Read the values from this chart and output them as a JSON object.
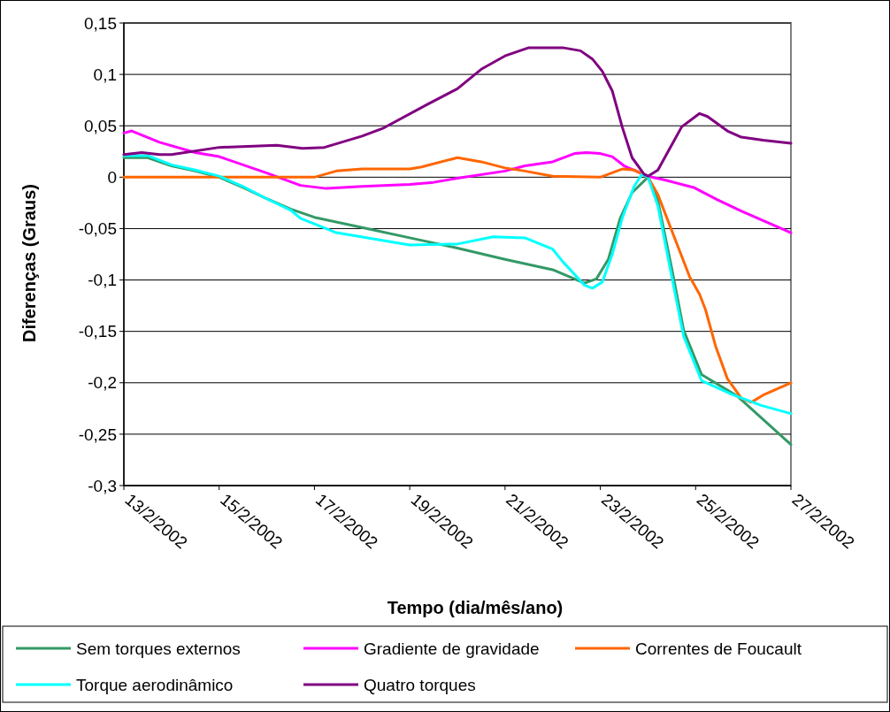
{
  "chart_data": {
    "type": "line",
    "xlabel": "Tempo (dia/mês/ano)",
    "ylabel": "Diferenças (Graus)",
    "xlim": [
      "2002-02-13",
      "2002-02-27"
    ],
    "xticks": [
      {
        "value": "2002-02-13",
        "label": "13/2/2002"
      },
      {
        "value": "2002-02-15",
        "label": "15/2/2002"
      },
      {
        "value": "2002-02-17",
        "label": "17/2/2002"
      },
      {
        "value": "2002-02-19",
        "label": "19/2/2002"
      },
      {
        "value": "2002-02-21",
        "label": "21/2/2002"
      },
      {
        "value": "2002-02-23",
        "label": "23/2/2002"
      },
      {
        "value": "2002-02-25",
        "label": "25/2/2002"
      },
      {
        "value": "2002-02-27",
        "label": "27/2/2002"
      }
    ],
    "ylim": [
      -0.3,
      0.15
    ],
    "yticks": [
      {
        "value": -0.3,
        "label": "-0,3"
      },
      {
        "value": -0.25,
        "label": "-0,25"
      },
      {
        "value": -0.2,
        "label": "-0,2"
      },
      {
        "value": -0.15,
        "label": "-0,15"
      },
      {
        "value": -0.1,
        "label": "-0,1"
      },
      {
        "value": -0.05,
        "label": "-0,05"
      },
      {
        "value": 0,
        "label": "0"
      },
      {
        "value": 0.05,
        "label": "0,05"
      },
      {
        "value": 0.1,
        "label": "0,1"
      },
      {
        "value": 0.15,
        "label": "0,15"
      }
    ],
    "grid": "y",
    "legend": "bottom",
    "marker": "none",
    "line_style": "solid",
    "series": [
      {
        "name": "Sem torques externos",
        "color": "#339966",
        "x": [
          "2002-02-13",
          "2002-02-13T12:00",
          "2002-02-14",
          "2002-02-14T12:00",
          "2002-02-15",
          "2002-02-15T12:00",
          "2002-02-16",
          "2002-02-16T12:00",
          "2002-02-17",
          "2002-02-18",
          "2002-02-19",
          "2002-02-20",
          "2002-02-21",
          "2002-02-22",
          "2002-02-22T16:00",
          "2002-02-22T22:00",
          "2002-02-23T04:00",
          "2002-02-23T10:00",
          "2002-02-23T16:00",
          "2002-02-24",
          "2002-02-24T05:00",
          "2002-02-24T12:00",
          "2002-02-24T18:00",
          "2002-02-25T03:00",
          "2002-02-25T21:00",
          "2002-02-27"
        ],
        "values": [
          0.019,
          0.019,
          0.011,
          0.006,
          0.0,
          -0.01,
          -0.021,
          -0.031,
          -0.039,
          -0.049,
          -0.059,
          -0.069,
          -0.08,
          -0.09,
          -0.103,
          -0.099,
          -0.08,
          -0.04,
          -0.015,
          0.0,
          -0.023,
          -0.089,
          -0.149,
          -0.192,
          -0.213,
          -0.26
        ]
      },
      {
        "name": "Gradiente de gravidade",
        "color": "#ff00ff",
        "x": [
          "2002-02-13",
          "2002-02-13T04:00",
          "2002-02-13T18:00",
          "2002-02-14T12:00",
          "2002-02-15",
          "2002-02-16",
          "2002-02-16T17:00",
          "2002-02-17T06:00",
          "2002-02-18",
          "2002-02-19",
          "2002-02-19T12:00",
          "2002-02-20",
          "2002-02-21",
          "2002-02-21T10:00",
          "2002-02-22",
          "2002-02-22T11:00",
          "2002-02-22T17:00",
          "2002-02-23",
          "2002-02-23T06:00",
          "2002-02-23T12:00",
          "2002-02-24",
          "2002-02-24T09:00",
          "2002-02-24T23:00",
          "2002-02-25T11:00",
          "2002-02-25T23:00",
          "2002-02-27"
        ],
        "values": [
          0.043,
          0.045,
          0.034,
          0.024,
          0.02,
          0.004,
          -0.008,
          -0.011,
          -0.009,
          -0.007,
          -0.005,
          -0.001,
          0.006,
          0.011,
          0.015,
          0.023,
          0.024,
          0.023,
          0.02,
          0.011,
          0.001,
          -0.003,
          -0.01,
          -0.022,
          -0.033,
          -0.054
        ]
      },
      {
        "name": "Correntes de Foucault",
        "color": "#ff6600",
        "x": [
          "2002-02-13",
          "2002-02-17",
          "2002-02-17T11:00",
          "2002-02-18",
          "2002-02-19",
          "2002-02-19T06:00",
          "2002-02-20",
          "2002-02-20T12:00",
          "2002-02-21",
          "2002-02-21T10:00",
          "2002-02-22",
          "2002-02-23",
          "2002-02-23T11:00",
          "2002-02-23T17:00",
          "2002-02-24",
          "2002-02-24T05:00",
          "2002-02-24T21:00",
          "2002-02-25T02:00",
          "2002-02-25T05:00",
          "2002-02-25T10:00",
          "2002-02-25T16:00",
          "2002-02-25T23:00",
          "2002-02-26T04:00",
          "2002-02-26T10:00",
          "2002-02-27"
        ],
        "values": [
          0,
          0,
          0.006,
          0.008,
          0.008,
          0.01,
          0.019,
          0.015,
          0.009,
          0.006,
          0.001,
          0.0,
          0.008,
          0.007,
          0.0,
          -0.017,
          -0.097,
          -0.114,
          -0.129,
          -0.164,
          -0.196,
          -0.215,
          -0.219,
          -0.212,
          -0.2
        ]
      },
      {
        "name": "Torque aerodinâmico",
        "color": "#00ffff",
        "x": [
          "2002-02-13",
          "2002-02-13T12:00",
          "2002-02-14",
          "2002-02-14T12:00",
          "2002-02-15",
          "2002-02-15T12:00",
          "2002-02-16",
          "2002-02-16T12:00",
          "2002-02-16T17:00",
          "2002-02-17T11:00",
          "2002-02-19",
          "2002-02-20",
          "2002-02-20T18:00",
          "2002-02-21T10:00",
          "2002-02-22",
          "2002-02-22T05:00",
          "2002-02-22T16:00",
          "2002-02-22T20:00",
          "2002-02-23T01:00",
          "2002-02-23T06:00",
          "2002-02-23T11:00",
          "2002-02-23T17:00",
          "2002-02-23T21:00",
          "2002-02-24",
          "2002-02-24T05:00",
          "2002-02-24T12:00",
          "2002-02-24T18:00",
          "2002-02-25T03:00",
          "2002-02-25T18:00",
          "2002-02-26T09:00",
          "2002-02-27"
        ],
        "values": [
          0.021,
          0.021,
          0.012,
          0.007,
          0.001,
          -0.009,
          -0.021,
          -0.032,
          -0.04,
          -0.054,
          -0.066,
          -0.065,
          -0.058,
          -0.059,
          -0.07,
          -0.082,
          -0.105,
          -0.108,
          -0.102,
          -0.075,
          -0.04,
          -0.009,
          0.003,
          0.0,
          -0.028,
          -0.097,
          -0.155,
          -0.198,
          -0.211,
          -0.222,
          -0.23
        ]
      },
      {
        "name": "Quatro torques",
        "color": "#800080",
        "x": [
          "2002-02-13",
          "2002-02-13T09:00",
          "2002-02-13T18:00",
          "2002-02-14",
          "2002-02-15",
          "2002-02-16T05:00",
          "2002-02-16T18:00",
          "2002-02-17T05:00",
          "2002-02-18",
          "2002-02-18T11:00",
          "2002-02-19T09:00",
          "2002-02-20",
          "2002-02-20T12:00",
          "2002-02-21",
          "2002-02-21T12:00",
          "2002-02-22T05:00",
          "2002-02-22T14:00",
          "2002-02-22T20:00",
          "2002-02-23T01:00",
          "2002-02-23T06:00",
          "2002-02-23T11:00",
          "2002-02-23T16:00",
          "2002-02-23T22:00",
          "2002-02-24",
          "2002-02-24T05:00",
          "2002-02-24T11:00",
          "2002-02-24T17:00",
          "2002-02-25T02:00",
          "2002-02-25T06:00",
          "2002-02-25T16:00",
          "2002-02-25T23:00",
          "2002-02-26T10:00",
          "2002-02-27"
        ],
        "values": [
          0.022,
          0.024,
          0.022,
          0.022,
          0.029,
          0.031,
          0.028,
          0.029,
          0.04,
          0.048,
          0.071,
          0.086,
          0.105,
          0.118,
          0.126,
          0.126,
          0.123,
          0.115,
          0.103,
          0.084,
          0.049,
          0.019,
          0.003,
          0.001,
          0.007,
          0.028,
          0.049,
          0.062,
          0.059,
          0.045,
          0.039,
          0.036,
          0.033
        ]
      }
    ]
  }
}
